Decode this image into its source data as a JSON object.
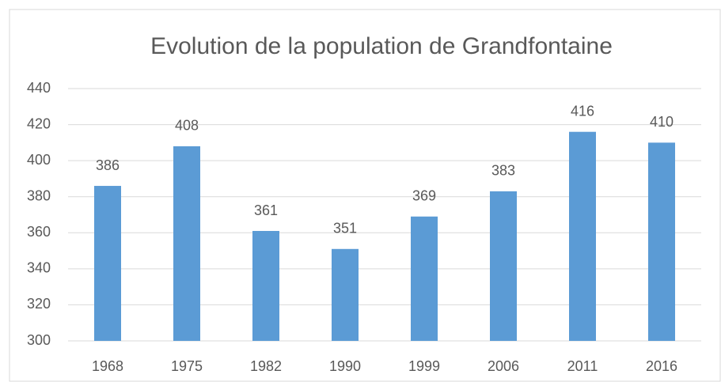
{
  "chart_data": {
    "type": "bar",
    "title": "Evolution de la population de Grandfontaine",
    "categories": [
      "1968",
      "1975",
      "1982",
      "1990",
      "1999",
      "2006",
      "2011",
      "2016"
    ],
    "values": [
      386,
      408,
      361,
      351,
      369,
      383,
      416,
      410
    ],
    "color": "#5b9bd5",
    "ylim": [
      300,
      440
    ],
    "yticks": [
      300,
      320,
      340,
      360,
      380,
      400,
      420,
      440
    ],
    "grid": true
  }
}
